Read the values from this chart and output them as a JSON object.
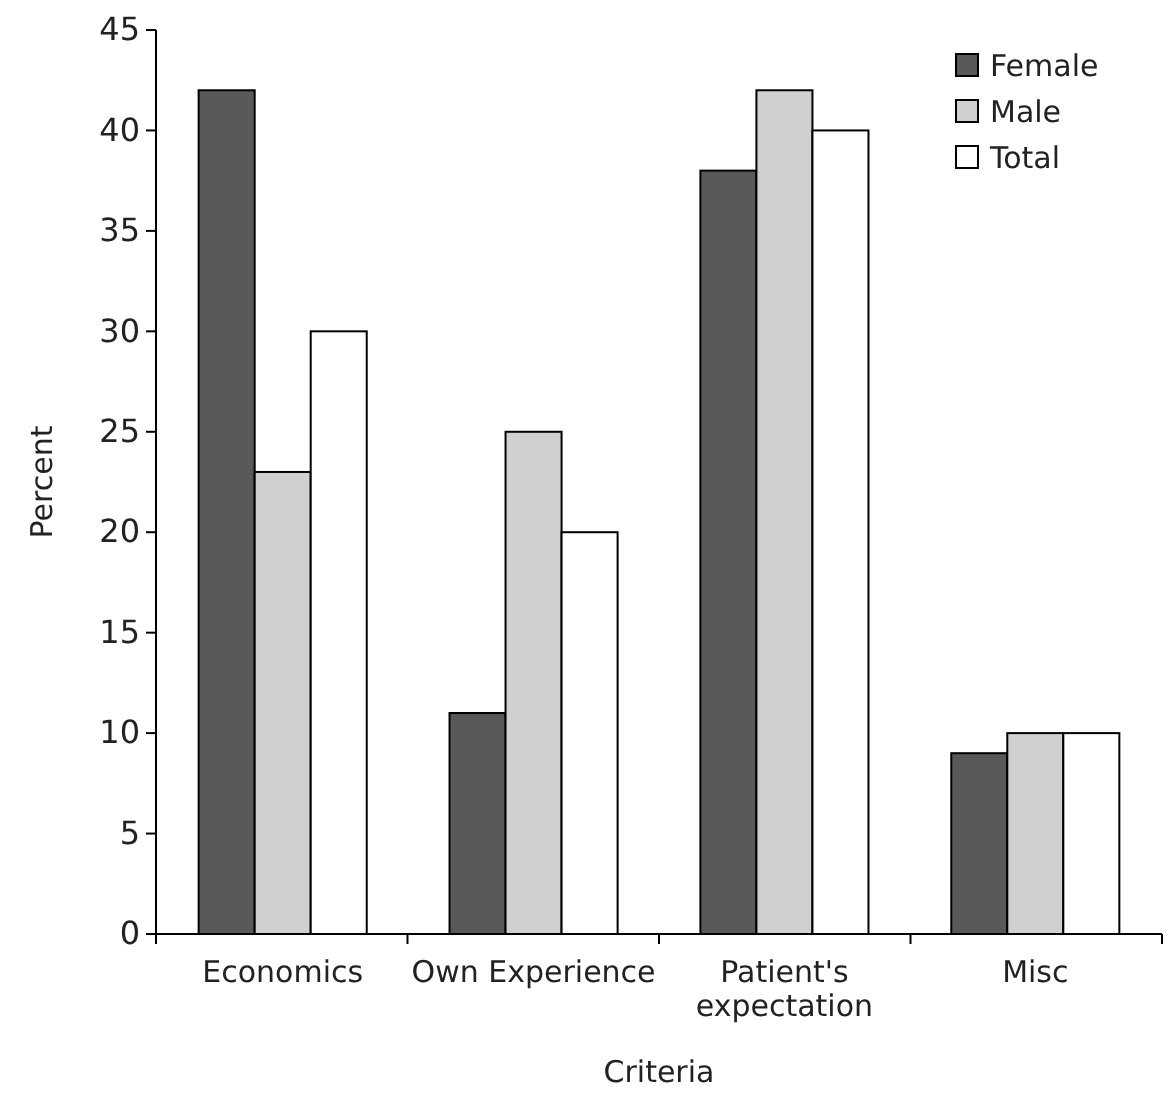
{
  "chart_data": {
    "type": "bar",
    "xlabel": "Criteria",
    "ylabel": "Percent",
    "categories": [
      "Economics",
      "Own Experience",
      "Patient's expectation",
      "Misc"
    ],
    "series": [
      {
        "name": "Female",
        "color": "#595959",
        "values": [
          42,
          11,
          38,
          9
        ]
      },
      {
        "name": "Male",
        "color": "#d0d0d0",
        "values": [
          23,
          25,
          42,
          10
        ]
      },
      {
        "name": "Total",
        "color": "#ffffff",
        "values": [
          30,
          20,
          40,
          10
        ]
      }
    ],
    "ylim": [
      0,
      45
    ],
    "yticks": [
      0,
      5,
      10,
      15,
      20,
      25,
      30,
      35,
      40,
      45
    ],
    "grid": false,
    "legend": "top right"
  }
}
